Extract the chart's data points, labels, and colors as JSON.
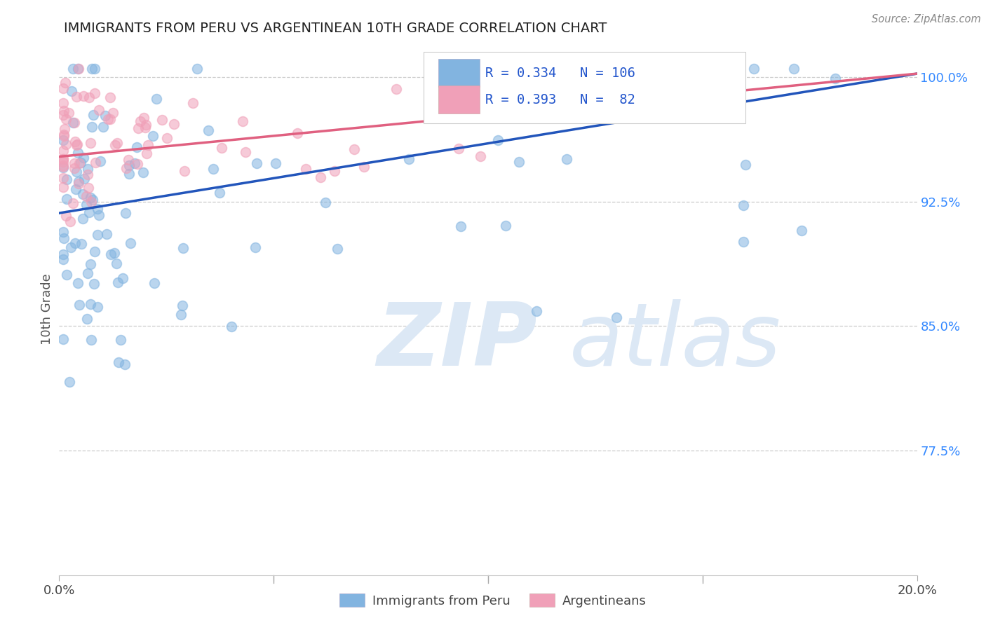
{
  "title": "IMMIGRANTS FROM PERU VS ARGENTINEAN 10TH GRADE CORRELATION CHART",
  "source": "Source: ZipAtlas.com",
  "ylabel": "10th Grade",
  "right_yticks": [
    "100.0%",
    "92.5%",
    "85.0%",
    "77.5%"
  ],
  "right_ytick_vals": [
    1.0,
    0.925,
    0.85,
    0.775
  ],
  "xmin": 0.0,
  "xmax": 0.2,
  "ymin": 0.7,
  "ymax": 1.02,
  "R_peru": 0.334,
  "N_peru": 106,
  "R_arg": 0.393,
  "N_arg": 82,
  "legend_label_peru": "Immigrants from Peru",
  "legend_label_arg": "Argentineans",
  "color_peru": "#82b4e0",
  "color_arg": "#f0a0b8",
  "line_color_peru": "#2255bb",
  "line_color_arg": "#e06080",
  "watermark_color": "#dce8f5",
  "grid_color": "#cccccc",
  "background_color": "#ffffff",
  "peru_line_y0": 0.918,
  "peru_line_y1": 1.002,
  "arg_line_y0": 0.952,
  "arg_line_y1": 1.002,
  "marker_size": 100,
  "marker_alpha": 0.55,
  "marker_lw": 1.2
}
